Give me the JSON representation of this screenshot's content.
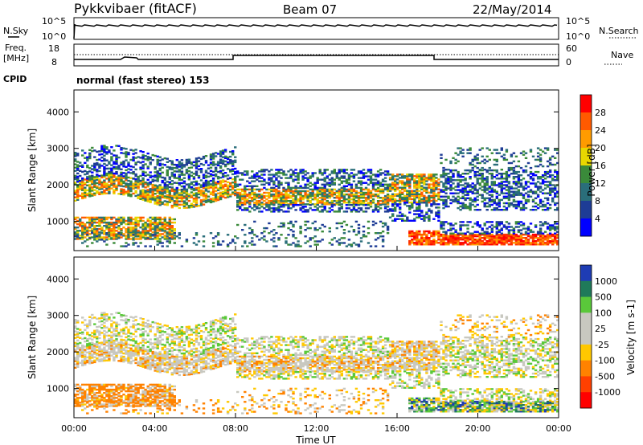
{
  "header": {
    "title": "Pykkvibaer (fitACF)",
    "beam": "Beam 07",
    "date": "22/May/2014"
  },
  "top_panels": {
    "nsky_label": "N.Sky",
    "nsearch_label": "N.Search",
    "freq_label_line1": "Freq.",
    "freq_label_line2": "[MHz]",
    "nave_label": "Nave",
    "cpid_label": "CPID",
    "cpid_value": "normal (fast stereo) 153",
    "nsky_ticks": [
      "10^5",
      "10^0"
    ],
    "nsearch_ticks": [
      "10^5",
      "10^0"
    ],
    "freq_ticks": [
      "18",
      "8"
    ],
    "nave_ticks": [
      "60",
      "0"
    ]
  },
  "chart_data": [
    {
      "type": "heatmap",
      "name": "power",
      "ylabel": "Slant Range [km]",
      "xlabel": "",
      "yticks": [
        1000,
        2000,
        3000,
        4000
      ],
      "ylim": [
        200,
        4600
      ],
      "xlim": [
        0,
        24
      ],
      "colorbar": {
        "label": "Power [dB]",
        "ticks": [
          "28",
          "24",
          "20",
          "16",
          "12",
          "8",
          "4"
        ],
        "colors": [
          "#ff0000",
          "#ff5a00",
          "#ff9b00",
          "#e8d700",
          "#3a8a3a",
          "#2a6e7a",
          "#1e3c96",
          "#0000ff"
        ]
      }
    },
    {
      "type": "heatmap",
      "name": "velocity",
      "ylabel": "Slant Range [km]",
      "xlabel": "Time UT",
      "yticks": [
        1000,
        2000,
        3000,
        4000
      ],
      "ylim": [
        200,
        4600
      ],
      "xlim": [
        0,
        24
      ],
      "xticks": [
        "00:00",
        "04:00",
        "08:00",
        "12:00",
        "16:00",
        "20:00",
        "00:00"
      ],
      "colorbar": {
        "label": "Velocity [m s-1]",
        "ticks": [
          "1000",
          "500",
          "100",
          "25",
          "-25",
          "-100",
          "-500",
          "-1000"
        ],
        "colors": [
          "#1e3cb4",
          "#1f7a5a",
          "#5ac83a",
          "#c8c8c0",
          "#c8c8c0",
          "#ffc800",
          "#ff8200",
          "#ff4000",
          "#ff0000"
        ]
      }
    }
  ]
}
